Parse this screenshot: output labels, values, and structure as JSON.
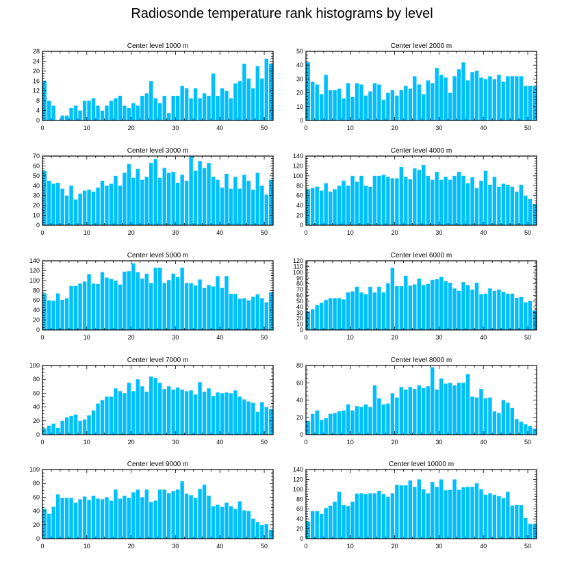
{
  "title": "Radiosonde temperature rank histograms by level",
  "colors": {
    "bar": "#00bfff",
    "axis": "#000000",
    "background": "#ffffff"
  },
  "chart_data": [
    {
      "type": "bar",
      "title": "Center level 1000 m",
      "xlabel": "",
      "ylabel": "",
      "xlim": [
        0,
        52
      ],
      "ylim": [
        0,
        28
      ],
      "xticks": [
        0,
        10,
        20,
        30,
        40,
        50
      ],
      "yticks": [
        0,
        4,
        8,
        12,
        16,
        20,
        24,
        28
      ],
      "x": [
        0,
        1,
        2,
        3,
        4,
        5,
        6,
        7,
        8,
        9,
        10,
        11,
        12,
        13,
        14,
        15,
        16,
        17,
        18,
        19,
        20,
        21,
        22,
        23,
        24,
        25,
        26,
        27,
        28,
        29,
        30,
        31,
        32,
        33,
        34,
        35,
        36,
        37,
        38,
        39,
        40,
        41,
        42,
        43,
        44,
        45,
        46,
        47,
        48,
        49,
        50,
        51
      ],
      "values": [
        16,
        8,
        6,
        0,
        2,
        2,
        5,
        6,
        4,
        8,
        8,
        9,
        6,
        4,
        6,
        8,
        9,
        10,
        6,
        5,
        7,
        6,
        10,
        11,
        16,
        9,
        7,
        10,
        3,
        10,
        10,
        14,
        13,
        9,
        13,
        9,
        11,
        10,
        19,
        10,
        13,
        12,
        9,
        15,
        16,
        23,
        17,
        13,
        22,
        17,
        25,
        23
      ]
    },
    {
      "type": "bar",
      "title": "Center level 2000 m",
      "xlabel": "",
      "ylabel": "",
      "xlim": [
        0,
        52
      ],
      "ylim": [
        0,
        50
      ],
      "xticks": [
        0,
        10,
        20,
        30,
        40,
        50
      ],
      "yticks": [
        0,
        10,
        20,
        30,
        40,
        50
      ],
      "x": [
        0,
        1,
        2,
        3,
        4,
        5,
        6,
        7,
        8,
        9,
        10,
        11,
        12,
        13,
        14,
        15,
        16,
        17,
        18,
        19,
        20,
        21,
        22,
        23,
        24,
        25,
        26,
        27,
        28,
        29,
        30,
        31,
        32,
        33,
        34,
        35,
        36,
        37,
        38,
        39,
        40,
        41,
        42,
        43,
        44,
        45,
        46,
        47,
        48,
        49,
        50,
        51
      ],
      "values": [
        42,
        28,
        26,
        19,
        33,
        22,
        22,
        23,
        16,
        27,
        17,
        27,
        26,
        18,
        21,
        27,
        26,
        15,
        20,
        22,
        18,
        22,
        25,
        23,
        32,
        26,
        19,
        29,
        27,
        38,
        33,
        31,
        20,
        32,
        37,
        42,
        29,
        35,
        36,
        31,
        30,
        32,
        30,
        33,
        28,
        32,
        32,
        32,
        32,
        25,
        25,
        25
      ]
    },
    {
      "type": "bar",
      "title": "Center level 3000 m",
      "xlabel": "",
      "ylabel": "",
      "xlim": [
        0,
        52
      ],
      "ylim": [
        0,
        70
      ],
      "xticks": [
        0,
        10,
        20,
        30,
        40,
        50
      ],
      "yticks": [
        0,
        10,
        20,
        30,
        40,
        50,
        60,
        70
      ],
      "x": [
        0,
        1,
        2,
        3,
        4,
        5,
        6,
        7,
        8,
        9,
        10,
        11,
        12,
        13,
        14,
        15,
        16,
        17,
        18,
        19,
        20,
        21,
        22,
        23,
        24,
        25,
        26,
        27,
        28,
        29,
        30,
        31,
        32,
        33,
        34,
        35,
        36,
        37,
        38,
        39,
        40,
        41,
        42,
        43,
        44,
        45,
        46,
        47,
        48,
        49,
        50,
        51
      ],
      "values": [
        55,
        45,
        42,
        43,
        37,
        30,
        40,
        26,
        32,
        35,
        36,
        34,
        38,
        45,
        40,
        42,
        50,
        40,
        53,
        62,
        48,
        57,
        46,
        49,
        63,
        67,
        48,
        58,
        53,
        54,
        43,
        51,
        45,
        70,
        55,
        65,
        58,
        63,
        49,
        46,
        38,
        52,
        37,
        49,
        37,
        51,
        45,
        36,
        53,
        40,
        31,
        46
      ]
    },
    {
      "type": "bar",
      "title": "Center level 4000 m",
      "xlabel": "",
      "ylabel": "",
      "xlim": [
        0,
        52
      ],
      "ylim": [
        0,
        140
      ],
      "xticks": [
        0,
        10,
        20,
        30,
        40,
        50
      ],
      "yticks": [
        0,
        20,
        40,
        60,
        80,
        100,
        120,
        140
      ],
      "x": [
        0,
        1,
        2,
        3,
        4,
        5,
        6,
        7,
        8,
        9,
        10,
        11,
        12,
        13,
        14,
        15,
        16,
        17,
        18,
        19,
        20,
        21,
        22,
        23,
        24,
        25,
        26,
        27,
        28,
        29,
        30,
        31,
        32,
        33,
        34,
        35,
        36,
        37,
        38,
        39,
        40,
        41,
        42,
        43,
        44,
        45,
        46,
        47,
        48,
        49,
        50,
        51
      ],
      "values": [
        73,
        75,
        78,
        70,
        85,
        68,
        73,
        80,
        90,
        80,
        100,
        88,
        100,
        80,
        78,
        100,
        100,
        102,
        98,
        95,
        95,
        118,
        98,
        93,
        115,
        112,
        122,
        100,
        92,
        108,
        92,
        98,
        92,
        100,
        108,
        100,
        85,
        97,
        75,
        90,
        110,
        82,
        98,
        78,
        84,
        82,
        78,
        68,
        82,
        60,
        53,
        43
      ]
    },
    {
      "type": "bar",
      "title": "Center level 5000 m",
      "xlabel": "",
      "ylabel": "",
      "xlim": [
        0,
        52
      ],
      "ylim": [
        0,
        140
      ],
      "xticks": [
        0,
        10,
        20,
        30,
        40,
        50
      ],
      "yticks": [
        0,
        20,
        40,
        60,
        80,
        100,
        120,
        140
      ],
      "x": [
        0,
        1,
        2,
        3,
        4,
        5,
        6,
        7,
        8,
        9,
        10,
        11,
        12,
        13,
        14,
        15,
        16,
        17,
        18,
        19,
        20,
        21,
        22,
        23,
        24,
        25,
        26,
        27,
        28,
        29,
        30,
        31,
        32,
        33,
        34,
        35,
        36,
        37,
        38,
        39,
        40,
        41,
        42,
        43,
        44,
        45,
        46,
        47,
        48,
        49,
        50,
        51
      ],
      "values": [
        74,
        60,
        59,
        74,
        61,
        64,
        89,
        89,
        94,
        98,
        113,
        94,
        93,
        117,
        106,
        103,
        100,
        92,
        118,
        119,
        135,
        117,
        104,
        114,
        95,
        126,
        126,
        95,
        101,
        114,
        107,
        126,
        95,
        95,
        90,
        102,
        85,
        91,
        88,
        109,
        85,
        109,
        73,
        73,
        63,
        64,
        60,
        67,
        72,
        64,
        56,
        76
      ]
    },
    {
      "type": "bar",
      "title": "Center level 6000 m",
      "xlabel": "",
      "ylabel": "",
      "xlim": [
        0,
        52
      ],
      "ylim": [
        0,
        120
      ],
      "xticks": [
        0,
        10,
        20,
        30,
        40,
        50
      ],
      "yticks": [
        0,
        10,
        20,
        30,
        40,
        50,
        60,
        70,
        80,
        90,
        100,
        110,
        120
      ],
      "x": [
        0,
        1,
        2,
        3,
        4,
        5,
        6,
        7,
        8,
        9,
        10,
        11,
        12,
        13,
        14,
        15,
        16,
        17,
        18,
        19,
        20,
        21,
        22,
        23,
        24,
        25,
        26,
        27,
        28,
        29,
        30,
        31,
        32,
        33,
        34,
        35,
        36,
        37,
        38,
        39,
        40,
        41,
        42,
        43,
        44,
        45,
        46,
        47,
        48,
        49,
        50,
        51
      ],
      "values": [
        32,
        36,
        43,
        47,
        52,
        55,
        55,
        55,
        53,
        65,
        67,
        75,
        65,
        62,
        75,
        65,
        75,
        65,
        81,
        108,
        76,
        76,
        94,
        77,
        79,
        89,
        78,
        80,
        87,
        88,
        92,
        85,
        82,
        72,
        68,
        83,
        78,
        70,
        82,
        62,
        63,
        72,
        68,
        70,
        66,
        63,
        63,
        56,
        57,
        48,
        50,
        34
      ]
    },
    {
      "type": "bar",
      "title": "Center level 7000 m",
      "xlabel": "",
      "ylabel": "",
      "xlim": [
        0,
        52
      ],
      "ylim": [
        0,
        100
      ],
      "xticks": [
        0,
        10,
        20,
        30,
        40,
        50
      ],
      "yticks": [
        0,
        20,
        40,
        60,
        80,
        100
      ],
      "x": [
        0,
        1,
        2,
        3,
        4,
        5,
        6,
        7,
        8,
        9,
        10,
        11,
        12,
        13,
        14,
        15,
        16,
        17,
        18,
        19,
        20,
        21,
        22,
        23,
        24,
        25,
        26,
        27,
        28,
        29,
        30,
        31,
        32,
        33,
        34,
        35,
        36,
        37,
        38,
        39,
        40,
        41,
        42,
        43,
        44,
        45,
        46,
        47,
        48,
        49,
        50,
        51
      ],
      "values": [
        9,
        13,
        16,
        10,
        20,
        25,
        27,
        29,
        20,
        22,
        28,
        35,
        45,
        50,
        55,
        55,
        67,
        63,
        60,
        75,
        63,
        80,
        70,
        62,
        84,
        82,
        75,
        66,
        70,
        65,
        68,
        65,
        63,
        64,
        58,
        76,
        62,
        67,
        56,
        61,
        60,
        61,
        60,
        64,
        55,
        51,
        48,
        46,
        33,
        47,
        40,
        37
      ]
    },
    {
      "type": "bar",
      "title": "Center level 8000 m",
      "xlabel": "",
      "ylabel": "",
      "xlim": [
        0,
        52
      ],
      "ylim": [
        0,
        80
      ],
      "xticks": [
        0,
        10,
        20,
        30,
        40,
        50
      ],
      "yticks": [
        0,
        20,
        40,
        60,
        80
      ],
      "x": [
        0,
        1,
        2,
        3,
        4,
        5,
        6,
        7,
        8,
        9,
        10,
        11,
        12,
        13,
        14,
        15,
        16,
        17,
        18,
        19,
        20,
        21,
        22,
        23,
        24,
        25,
        26,
        27,
        28,
        29,
        30,
        31,
        32,
        33,
        34,
        35,
        36,
        37,
        38,
        39,
        40,
        41,
        42,
        43,
        44,
        45,
        46,
        47,
        48,
        49,
        50,
        51
      ],
      "values": [
        16,
        24,
        28,
        17,
        19,
        24,
        25,
        27,
        28,
        35,
        28,
        33,
        32,
        35,
        32,
        57,
        42,
        35,
        36,
        48,
        43,
        55,
        52,
        55,
        53,
        57,
        54,
        56,
        78,
        52,
        65,
        59,
        60,
        57,
        60,
        60,
        70,
        44,
        43,
        53,
        42,
        43,
        27,
        25,
        40,
        37,
        31,
        18,
        15,
        12,
        10,
        7
      ]
    },
    {
      "type": "bar",
      "title": "Center level 9000 m",
      "xlabel": "",
      "ylabel": "",
      "xlim": [
        0,
        52
      ],
      "ylim": [
        0,
        100
      ],
      "xticks": [
        0,
        10,
        20,
        30,
        40,
        50
      ],
      "yticks": [
        0,
        20,
        40,
        60,
        80,
        100
      ],
      "x": [
        0,
        1,
        2,
        3,
        4,
        5,
        6,
        7,
        8,
        9,
        10,
        11,
        12,
        13,
        14,
        15,
        16,
        17,
        18,
        19,
        20,
        21,
        22,
        23,
        24,
        25,
        26,
        27,
        28,
        29,
        30,
        31,
        32,
        33,
        34,
        35,
        36,
        37,
        38,
        39,
        40,
        41,
        42,
        43,
        44,
        45,
        46,
        47,
        48,
        49,
        50,
        51
      ],
      "values": [
        43,
        36,
        46,
        64,
        59,
        59,
        59,
        52,
        57,
        61,
        56,
        62,
        58,
        57,
        60,
        55,
        71,
        58,
        62,
        59,
        67,
        71,
        60,
        71,
        53,
        55,
        71,
        71,
        66,
        69,
        71,
        83,
        65,
        63,
        59,
        72,
        78,
        62,
        47,
        49,
        46,
        52,
        47,
        43,
        54,
        41,
        40,
        29,
        24,
        20,
        21,
        13
      ]
    },
    {
      "type": "bar",
      "title": "Center level 10000 m",
      "xlabel": "",
      "ylabel": "",
      "xlim": [
        0,
        52
      ],
      "ylim": [
        0,
        140
      ],
      "xticks": [
        0,
        10,
        20,
        30,
        40,
        50
      ],
      "yticks": [
        0,
        20,
        40,
        60,
        80,
        100,
        120,
        140
      ],
      "x": [
        0,
        1,
        2,
        3,
        4,
        5,
        6,
        7,
        8,
        9,
        10,
        11,
        12,
        13,
        14,
        15,
        16,
        17,
        18,
        19,
        20,
        21,
        22,
        23,
        24,
        25,
        26,
        27,
        28,
        29,
        30,
        31,
        32,
        33,
        34,
        35,
        36,
        37,
        38,
        39,
        40,
        41,
        42,
        43,
        44,
        45,
        46,
        47,
        48,
        49,
        50,
        51
      ],
      "values": [
        35,
        56,
        56,
        50,
        62,
        67,
        75,
        95,
        68,
        66,
        75,
        91,
        92,
        90,
        92,
        92,
        97,
        90,
        85,
        92,
        109,
        108,
        108,
        118,
        105,
        120,
        100,
        92,
        115,
        105,
        120,
        98,
        99,
        120,
        99,
        104,
        105,
        105,
        112,
        100,
        89,
        92,
        89,
        86,
        82,
        95,
        67,
        68,
        68,
        42,
        30,
        30
      ]
    }
  ]
}
